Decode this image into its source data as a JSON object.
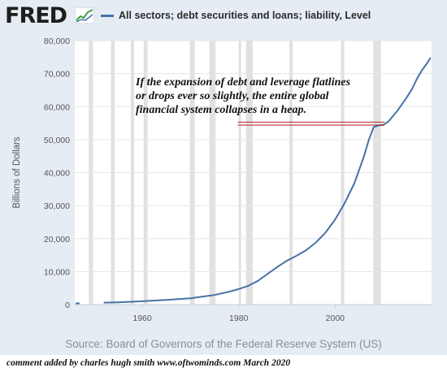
{
  "header": {
    "logo_text": "FRED",
    "logo_icon": "fred-graph-icon",
    "legend_label": "All sectors; debt securities and loans; liability, Level"
  },
  "annotation": {
    "lines": [
      "If the expansion of debt and leverage flatlines",
      "or drops ever so slightly, the entire global",
      "financial system collapses in a heap."
    ],
    "marker_color": "#b22222"
  },
  "footer": {
    "source": "Source: Board of Governors of the Federal Reserve System (US)",
    "credit": "comment added by charles hugh smith   www.oftwominds.com   March 2020"
  },
  "colors": {
    "series": "#4572a7",
    "recession": "#e1e1e1",
    "background": "#e6ecf3"
  },
  "chart_data": {
    "type": "line",
    "title": "",
    "xlabel": "",
    "ylabel": "Billions of Dollars",
    "xlim": [
      1946,
      2020
    ],
    "ylim": [
      0,
      80000
    ],
    "y_ticks": [
      0,
      10000,
      20000,
      30000,
      40000,
      50000,
      60000,
      70000,
      80000
    ],
    "y_tick_labels": [
      "0",
      "10,000",
      "20,000",
      "30,000",
      "40,000",
      "50,000",
      "60,000",
      "70,000",
      "80,000"
    ],
    "x_ticks": [
      1960,
      1980,
      2000
    ],
    "x_tick_labels": [
      "1960",
      "1980",
      "2000"
    ],
    "grid": "horizontal",
    "recessions": [
      [
        1948.9,
        1949.8
      ],
      [
        1953.5,
        1954.3
      ],
      [
        1957.6,
        1958.3
      ],
      [
        1960.3,
        1961.1
      ],
      [
        1969.9,
        1970.9
      ],
      [
        1973.9,
        1975.2
      ],
      [
        1980.0,
        1980.5
      ],
      [
        1981.5,
        1982.9
      ],
      [
        1990.5,
        1991.2
      ],
      [
        2001.2,
        2001.9
      ],
      [
        2007.9,
        2009.5
      ]
    ],
    "series": [
      {
        "name": "All sectors; debt securities and loans; liability, Level",
        "x": [
          1952,
          1955,
          1960,
          1965,
          1970,
          1973,
          1975,
          1978,
          1980,
          1982,
          1984,
          1986,
          1988,
          1990,
          1992,
          1994,
          1996,
          1998,
          2000,
          2002,
          2004,
          2006,
          2007,
          2008,
          2009,
          2010,
          2011,
          2012,
          2013,
          2014,
          2015,
          2016,
          2017,
          2018,
          2019,
          2019.8
        ],
        "values": [
          600,
          700,
          1000,
          1400,
          1900,
          2500,
          2900,
          3900,
          4700,
          5700,
          7200,
          9300,
          11400,
          13300,
          14800,
          16500,
          18800,
          21800,
          25800,
          30800,
          36800,
          45000,
          50000,
          53800,
          54300,
          54500,
          55400,
          57100,
          58900,
          61000,
          63100,
          65500,
          68500,
          71000,
          73000,
          74800
        ]
      }
    ]
  }
}
